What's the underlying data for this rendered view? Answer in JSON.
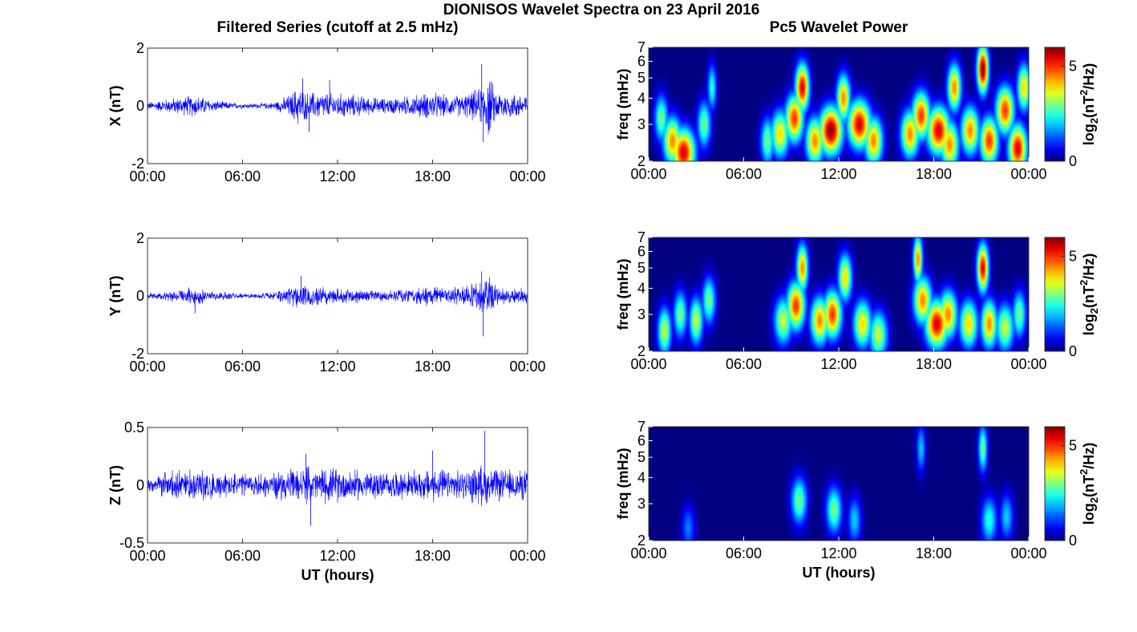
{
  "figure": {
    "title": "DIONISOS Wavelet Spectra on 23 April 2016",
    "left_title": "Filtered Series (cutoff at 2.5 mHz)",
    "right_title": "Pc5 Wavelet Power",
    "x_label": "UT (hours)",
    "colorbar_label": "log2(nT2/Hz)",
    "colormap": "jet"
  },
  "chart_data": [
    {
      "type": "line",
      "component": "X",
      "title": "",
      "xlabel": "",
      "ylabel": "X (nT)",
      "x_ticks": [
        "00:00",
        "06:00",
        "12:00",
        "18:00",
        "00:00"
      ],
      "y_ticks": [
        "-2",
        "0",
        "2"
      ],
      "xlim": [
        0,
        24
      ],
      "ylim": [
        -2,
        2
      ],
      "color": "#0000ff",
      "envelope": {
        "hours": [
          0,
          1,
          2,
          3,
          4,
          5,
          6,
          7,
          8,
          9,
          9.5,
          10,
          11,
          12,
          13,
          14,
          15,
          16,
          17,
          18,
          19,
          20,
          21,
          21.5,
          22,
          23,
          24
        ],
        "amplitude": [
          0.15,
          0.25,
          0.35,
          0.45,
          0.25,
          0.15,
          0.1,
          0.1,
          0.15,
          0.45,
          0.8,
          0.55,
          0.55,
          0.5,
          0.45,
          0.35,
          0.3,
          0.35,
          0.45,
          0.55,
          0.4,
          0.45,
          0.7,
          1.3,
          0.6,
          0.5,
          0.5
        ]
      },
      "peaks": [
        [
          9.8,
          0.95
        ],
        [
          11.5,
          0.9
        ],
        [
          21.1,
          1.45
        ],
        [
          21.2,
          -1.25
        ],
        [
          10.2,
          -0.9
        ]
      ]
    },
    {
      "type": "line",
      "component": "Y",
      "title": "",
      "xlabel": "",
      "ylabel": "Y (nT)",
      "x_ticks": [
        "00:00",
        "06:00",
        "12:00",
        "18:00",
        "00:00"
      ],
      "y_ticks": [
        "-2",
        "0",
        "2"
      ],
      "xlim": [
        0,
        24
      ],
      "ylim": [
        -2,
        2
      ],
      "color": "#0000ff",
      "envelope": {
        "hours": [
          0,
          1,
          2,
          3,
          4,
          5,
          6,
          7,
          8,
          9,
          9.5,
          10,
          11,
          12,
          13,
          14,
          15,
          16,
          17,
          18,
          19,
          20,
          21,
          21.5,
          22,
          23,
          24
        ],
        "amplitude": [
          0.12,
          0.18,
          0.25,
          0.35,
          0.2,
          0.15,
          0.1,
          0.1,
          0.15,
          0.35,
          0.6,
          0.45,
          0.4,
          0.35,
          0.3,
          0.25,
          0.2,
          0.25,
          0.3,
          0.45,
          0.3,
          0.35,
          0.6,
          1.1,
          0.4,
          0.3,
          0.3
        ]
      },
      "peaks": [
        [
          21.1,
          0.85
        ],
        [
          21.2,
          -1.4
        ],
        [
          3.0,
          -0.6
        ],
        [
          9.7,
          0.7
        ]
      ]
    },
    {
      "type": "line",
      "component": "Z",
      "title": "",
      "xlabel": "UT (hours)",
      "ylabel": "Z (nT)",
      "x_ticks": [
        "00:00",
        "06:00",
        "12:00",
        "18:00",
        "00:00"
      ],
      "y_ticks": [
        "-0.5",
        "0",
        "0.5"
      ],
      "xlim": [
        0,
        24
      ],
      "ylim": [
        -0.5,
        0.5
      ],
      "color": "#0000ff",
      "envelope": {
        "hours": [
          0,
          1,
          2,
          3,
          4,
          5,
          6,
          7,
          8,
          9,
          10,
          11,
          12,
          13,
          14,
          15,
          16,
          17,
          18,
          19,
          20,
          21,
          22,
          23,
          24
        ],
        "amplitude": [
          0.08,
          0.12,
          0.15,
          0.17,
          0.14,
          0.12,
          0.12,
          0.12,
          0.13,
          0.15,
          0.18,
          0.17,
          0.17,
          0.15,
          0.14,
          0.13,
          0.13,
          0.14,
          0.17,
          0.14,
          0.14,
          0.2,
          0.16,
          0.15,
          0.15
        ]
      },
      "peaks": [
        [
          21.3,
          0.47
        ],
        [
          18.0,
          0.3
        ],
        [
          10.3,
          -0.35
        ],
        [
          10.0,
          0.27
        ]
      ]
    },
    {
      "type": "heatmap",
      "component": "X",
      "title": "",
      "xlabel": "",
      "ylabel": "freq (mHz)",
      "x_ticks": [
        "00:00",
        "06:00",
        "12:00",
        "18:00",
        "00:00"
      ],
      "y_ticks": [
        "2",
        "3",
        "4",
        "5",
        "6",
        "7"
      ],
      "xlim": [
        0,
        24
      ],
      "ylim": [
        2,
        7
      ],
      "y_scale": "log",
      "colorbar": {
        "ticks": [
          "0",
          "5"
        ],
        "range": [
          0,
          6
        ]
      },
      "blobs": [
        [
          1.5,
          2.5,
          0.4,
          4.5
        ],
        [
          2.2,
          2.2,
          0.5,
          5.5
        ],
        [
          0.8,
          3.2,
          0.3,
          3.0
        ],
        [
          3.5,
          3.0,
          0.3,
          3.0
        ],
        [
          4.0,
          4.5,
          0.2,
          2.5
        ],
        [
          7.5,
          2.5,
          0.3,
          3.0
        ],
        [
          8.3,
          2.7,
          0.4,
          4.0
        ],
        [
          9.2,
          3.2,
          0.4,
          5.0
        ],
        [
          9.7,
          4.5,
          0.3,
          5.5
        ],
        [
          10.5,
          2.5,
          0.4,
          4.5
        ],
        [
          11.5,
          2.8,
          0.5,
          6.0
        ],
        [
          12.3,
          4.0,
          0.3,
          4.5
        ],
        [
          13.3,
          3.0,
          0.5,
          5.5
        ],
        [
          14.2,
          2.5,
          0.4,
          4.5
        ],
        [
          16.5,
          2.7,
          0.4,
          4.5
        ],
        [
          17.2,
          3.3,
          0.4,
          5.0
        ],
        [
          18.3,
          2.8,
          0.5,
          5.5
        ],
        [
          19.0,
          2.4,
          0.4,
          4.5
        ],
        [
          19.3,
          4.5,
          0.3,
          4.5
        ],
        [
          20.3,
          2.8,
          0.4,
          4.5
        ],
        [
          21.1,
          5.5,
          0.25,
          6.0
        ],
        [
          21.5,
          2.5,
          0.4,
          5.0
        ],
        [
          22.5,
          3.5,
          0.4,
          5.0
        ],
        [
          23.3,
          2.3,
          0.4,
          5.5
        ],
        [
          23.7,
          4.5,
          0.3,
          4.0
        ]
      ]
    },
    {
      "type": "heatmap",
      "component": "Y",
      "title": "",
      "xlabel": "",
      "ylabel": "freq (mHz)",
      "x_ticks": [
        "00:00",
        "06:00",
        "12:00",
        "18:00",
        "00:00"
      ],
      "y_ticks": [
        "2",
        "3",
        "4",
        "5",
        "6",
        "7"
      ],
      "xlim": [
        0,
        24
      ],
      "ylim": [
        2,
        7
      ],
      "y_scale": "log",
      "colorbar": {
        "ticks": [
          "0",
          "5"
        ],
        "range": [
          0,
          6
        ]
      },
      "blobs": [
        [
          1.0,
          2.5,
          0.3,
          3.5
        ],
        [
          2.0,
          3.0,
          0.3,
          3.0
        ],
        [
          3.0,
          2.8,
          0.3,
          3.5
        ],
        [
          3.8,
          3.5,
          0.3,
          3.0
        ],
        [
          8.5,
          2.8,
          0.4,
          3.5
        ],
        [
          9.3,
          3.3,
          0.4,
          5.0
        ],
        [
          9.7,
          5.0,
          0.25,
          4.5
        ],
        [
          10.8,
          2.8,
          0.4,
          4.5
        ],
        [
          11.6,
          3.0,
          0.4,
          5.0
        ],
        [
          12.4,
          4.5,
          0.3,
          4.0
        ],
        [
          13.5,
          2.7,
          0.4,
          4.0
        ],
        [
          14.5,
          2.4,
          0.4,
          3.5
        ],
        [
          17.3,
          3.5,
          0.4,
          4.5
        ],
        [
          17.0,
          5.5,
          0.2,
          4.5
        ],
        [
          18.2,
          2.7,
          0.5,
          5.5
        ],
        [
          18.9,
          3.0,
          0.4,
          4.5
        ],
        [
          20.2,
          2.7,
          0.4,
          4.0
        ],
        [
          21.1,
          5.0,
          0.25,
          5.5
        ],
        [
          21.5,
          2.7,
          0.35,
          4.5
        ],
        [
          22.5,
          2.6,
          0.4,
          3.5
        ],
        [
          23.4,
          3.0,
          0.3,
          3.0
        ]
      ]
    },
    {
      "type": "heatmap",
      "component": "Z",
      "title": "",
      "xlabel": "UT (hours)",
      "ylabel": "freq (mHz)",
      "x_ticks": [
        "00:00",
        "06:00",
        "12:00",
        "18:00",
        "00:00"
      ],
      "y_ticks": [
        "2",
        "3",
        "4",
        "5",
        "6",
        "7"
      ],
      "xlim": [
        0,
        24
      ],
      "ylim": [
        2,
        7
      ],
      "y_scale": "log",
      "colorbar": {
        "ticks": [
          "0",
          "5"
        ],
        "range": [
          0,
          6
        ]
      },
      "blobs": [
        [
          9.5,
          3.1,
          0.35,
          3.0
        ],
        [
          11.7,
          2.8,
          0.35,
          3.0
        ],
        [
          13.0,
          2.5,
          0.3,
          2.0
        ],
        [
          2.5,
          2.3,
          0.3,
          1.5
        ],
        [
          21.1,
          5.5,
          0.2,
          3.0
        ],
        [
          21.5,
          2.5,
          0.35,
          2.5
        ],
        [
          22.6,
          2.6,
          0.3,
          2.0
        ],
        [
          17.2,
          5.5,
          0.2,
          2.0
        ]
      ]
    }
  ]
}
